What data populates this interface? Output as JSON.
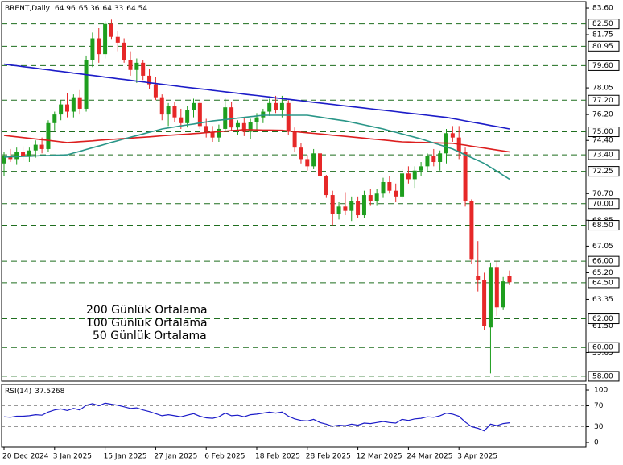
{
  "chart_data": {
    "type": "candlestick",
    "symbol": "BRENT,Daily",
    "categories": [
      "20 Dec 2024",
      null,
      null,
      null,
      null,
      null,
      null,
      null,
      "3 Jan 2025",
      null,
      null,
      null,
      null,
      null,
      null,
      null,
      "15 Jan 2025",
      null,
      null,
      null,
      null,
      null,
      null,
      null,
      "27 Jan 2025",
      null,
      null,
      null,
      null,
      null,
      null,
      null,
      "6 Feb 2025",
      null,
      null,
      null,
      null,
      null,
      null,
      null,
      "18 Feb 2025",
      null,
      null,
      null,
      null,
      null,
      null,
      null,
      "28 Feb 2025",
      null,
      null,
      null,
      null,
      null,
      null,
      null,
      "12 Mar 2025",
      null,
      null,
      null,
      null,
      null,
      null,
      null,
      "24 Mar 2025",
      null,
      null,
      null,
      null,
      null,
      null,
      null,
      "3 Apr 2025",
      null,
      null,
      null,
      null,
      null,
      null,
      null,
      null
    ],
    "open": [
      72.8,
      73.3,
      73.1,
      73.6,
      73.3,
      73.7,
      74.1,
      73.8,
      75.6,
      76.2,
      76.9,
      76.4,
      77.4,
      76.6,
      80.0,
      81.5,
      80.4,
      82.5,
      81.6,
      81.2,
      80.0,
      79.3,
      79.8,
      78.9,
      78.3,
      77.4,
      76.2,
      76.8,
      76.0,
      75.6,
      76.5,
      77.0,
      75.4,
      75.0,
      74.6,
      75.2,
      76.7,
      75.3,
      75.6,
      75.0,
      75.7,
      76.0,
      76.4,
      77.0,
      76.5,
      77.0,
      75.0,
      73.9,
      73.1,
      72.6,
      73.5,
      71.9,
      70.6,
      69.3,
      69.8,
      69.5,
      70.2,
      69.2,
      70.6,
      70.2,
      70.7,
      71.5,
      70.9,
      70.5,
      72.1,
      71.7,
      72.3,
      72.6,
      73.3,
      72.9,
      73.5,
      74.9,
      74.6,
      73.6,
      70.2,
      65.0,
      64.7,
      61.4,
      65.6,
      62.8,
      64.96
    ],
    "high": [
      73.6,
      73.8,
      73.9,
      74.0,
      73.9,
      74.4,
      74.6,
      75.8,
      76.4,
      77.2,
      77.7,
      77.6,
      77.9,
      80.3,
      81.9,
      82.2,
      82.7,
      82.8,
      82.0,
      81.5,
      80.6,
      80.1,
      80.0,
      79.4,
      78.8,
      77.6,
      77.0,
      77.1,
      76.6,
      76.8,
      77.3,
      77.2,
      75.9,
      75.4,
      75.5,
      77.3,
      77.1,
      75.8,
      76.0,
      75.9,
      76.3,
      76.6,
      77.3,
      77.5,
      77.5,
      77.2,
      75.3,
      74.2,
      73.4,
      73.8,
      73.9,
      72.0,
      70.9,
      70.1,
      70.8,
      70.5,
      70.5,
      70.9,
      71.0,
      71.0,
      71.8,
      71.9,
      71.4,
      72.4,
      72.6,
      72.6,
      72.9,
      73.5,
      73.8,
      73.7,
      75.2,
      75.4,
      75.4,
      73.9,
      70.3,
      67.4,
      65.2,
      65.9,
      66.0,
      64.9,
      65.36
    ],
    "low": [
      71.9,
      72.9,
      72.7,
      73.0,
      72.9,
      73.2,
      73.5,
      73.6,
      75.1,
      75.8,
      76.0,
      76.0,
      76.2,
      76.4,
      79.5,
      79.8,
      80.1,
      81.4,
      80.6,
      79.8,
      78.9,
      78.4,
      78.6,
      78.0,
      77.2,
      75.8,
      75.4,
      75.7,
      75.2,
      75.3,
      76.0,
      75.2,
      74.6,
      74.3,
      74.3,
      75.0,
      75.1,
      74.8,
      74.7,
      74.5,
      75.0,
      75.6,
      76.1,
      76.3,
      76.0,
      74.8,
      73.6,
      72.8,
      72.3,
      72.4,
      71.5,
      70.4,
      68.5,
      68.9,
      69.2,
      68.8,
      69.0,
      69.0,
      69.9,
      69.9,
      70.4,
      70.7,
      70.1,
      70.3,
      71.4,
      71.1,
      71.9,
      72.2,
      72.6,
      72.3,
      72.8,
      74.3,
      73.1,
      69.8,
      65.8,
      63.9,
      61.2,
      58.2,
      62.2,
      62.6,
      64.33
    ],
    "close": [
      73.3,
      73.1,
      73.6,
      73.3,
      73.7,
      74.1,
      73.8,
      75.6,
      76.2,
      76.9,
      76.4,
      77.4,
      76.6,
      80.0,
      81.5,
      80.4,
      82.5,
      81.6,
      81.2,
      80.0,
      79.3,
      79.8,
      78.9,
      78.3,
      77.4,
      76.2,
      76.8,
      76.0,
      75.6,
      76.5,
      77.0,
      75.4,
      75.0,
      74.6,
      75.2,
      76.7,
      75.3,
      75.6,
      75.0,
      75.7,
      76.0,
      76.4,
      77.0,
      76.5,
      77.0,
      75.0,
      73.9,
      73.1,
      72.6,
      73.5,
      71.9,
      70.6,
      69.3,
      69.8,
      69.5,
      70.2,
      69.2,
      70.6,
      70.2,
      70.7,
      71.5,
      70.9,
      70.5,
      72.1,
      71.7,
      72.3,
      72.6,
      73.3,
      72.9,
      73.5,
      74.9,
      74.6,
      73.6,
      70.2,
      66.1,
      64.7,
      61.5,
      65.6,
      62.8,
      64.6,
      64.54
    ],
    "up_color": "#1e9e1e",
    "down_color": "#e62828",
    "series": [
      {
        "name": "200 Günlük Ortalama",
        "color": "#1c1cc8",
        "values": [
          79.7,
          79.64,
          79.59,
          79.53,
          79.48,
          79.42,
          79.36,
          79.31,
          79.25,
          79.2,
          79.14,
          79.08,
          79.03,
          78.97,
          78.92,
          78.86,
          78.8,
          78.75,
          78.69,
          78.64,
          78.58,
          78.52,
          78.47,
          78.41,
          78.36,
          78.3,
          78.25,
          78.2,
          78.14,
          78.09,
          78.04,
          77.99,
          77.94,
          77.88,
          77.83,
          77.78,
          77.73,
          77.68,
          77.62,
          77.57,
          77.52,
          77.47,
          77.42,
          77.36,
          77.31,
          77.26,
          77.21,
          77.16,
          77.1,
          77.05,
          77.0,
          76.95,
          76.9,
          76.85,
          76.8,
          76.75,
          76.7,
          76.65,
          76.6,
          76.55,
          76.5,
          76.45,
          76.4,
          76.35,
          76.3,
          76.25,
          76.2,
          76.15,
          76.1,
          76.05,
          76.0,
          75.92,
          75.84,
          75.76,
          75.68,
          75.6,
          75.52,
          75.44,
          75.36,
          75.28,
          75.2
        ]
      },
      {
        "name": "100 Günlük Ortalama",
        "color": "#dc1e1e",
        "values": [
          74.75,
          74.7,
          74.65,
          74.6,
          74.55,
          74.5,
          74.45,
          74.4,
          74.35,
          74.3,
          74.25,
          74.28,
          74.31,
          74.34,
          74.37,
          74.41,
          74.44,
          74.47,
          74.5,
          74.53,
          74.56,
          74.59,
          74.62,
          74.65,
          74.68,
          74.72,
          74.75,
          74.78,
          74.81,
          74.84,
          74.87,
          74.9,
          74.94,
          74.97,
          75.01,
          75.04,
          75.08,
          75.11,
          75.15,
          75.14,
          75.13,
          75.12,
          75.12,
          75.11,
          75.1,
          75.06,
          75.02,
          74.97,
          74.93,
          74.89,
          74.85,
          74.81,
          74.76,
          74.72,
          74.68,
          74.64,
          74.6,
          74.56,
          74.51,
          74.47,
          74.43,
          74.39,
          74.34,
          74.3,
          74.29,
          74.27,
          74.26,
          74.25,
          74.24,
          74.22,
          74.21,
          74.2,
          74.13,
          74.07,
          74.0,
          73.93,
          73.87,
          73.8,
          73.73,
          73.67,
          73.6
        ]
      },
      {
        "name": "50 Günlük Ortalama",
        "color": "#2a9688",
        "values": [
          73.24,
          73.26,
          73.27,
          73.29,
          73.3,
          73.32,
          73.34,
          73.35,
          73.37,
          73.38,
          73.4,
          73.52,
          73.64,
          73.77,
          73.89,
          74.01,
          74.13,
          74.26,
          74.38,
          74.5,
          74.62,
          74.73,
          74.85,
          74.97,
          75.08,
          75.2,
          75.27,
          75.34,
          75.41,
          75.48,
          75.54,
          75.61,
          75.68,
          75.75,
          75.8,
          75.85,
          75.9,
          75.95,
          76.0,
          76.05,
          76.1,
          76.15,
          76.15,
          76.15,
          76.15,
          76.15,
          76.15,
          76.15,
          76.15,
          76.08,
          76.02,
          75.95,
          75.88,
          75.82,
          75.75,
          75.66,
          75.57,
          75.48,
          75.38,
          75.29,
          75.2,
          75.08,
          74.97,
          74.85,
          74.73,
          74.62,
          74.5,
          74.36,
          74.22,
          74.08,
          73.94,
          73.8,
          73.6,
          73.4,
          73.2,
          73.0,
          72.8,
          72.53,
          72.25,
          71.98,
          71.7
        ]
      }
    ],
    "ylim": [
      57.66,
      84.05
    ],
    "yticks": [
      {
        "value": 83.6,
        "label": "83.60"
      },
      {
        "value": 81.75,
        "label": "81.75"
      },
      {
        "value": 78.05,
        "label": "78.05"
      },
      {
        "value": 76.2,
        "label": "76.20"
      },
      {
        "value": 74.4,
        "label": "74.40"
      },
      {
        "value": 70.7,
        "label": "70.70"
      },
      {
        "value": 68.85,
        "label": "68.85"
      },
      {
        "value": 67.05,
        "label": "67.05"
      },
      {
        "value": 65.2,
        "label": "65.20"
      },
      {
        "value": 63.35,
        "label": "63.35"
      },
      {
        "value": 61.5,
        "label": "61.50"
      },
      {
        "value": 59.65,
        "label": "59.65"
      }
    ],
    "levels": [
      {
        "value": 82.5,
        "label": "82.50"
      },
      {
        "value": 80.95,
        "label": "80.95"
      },
      {
        "value": 79.6,
        "label": "79.60"
      },
      {
        "value": 77.2,
        "label": "77.20"
      },
      {
        "value": 75,
        "label": "75.00"
      },
      {
        "value": 73.4,
        "label": "73.40"
      },
      {
        "value": 72.25,
        "label": "72.25"
      },
      {
        "value": 70,
        "label": "70.00"
      },
      {
        "value": 68.5,
        "label": "68.50"
      },
      {
        "value": 66,
        "label": "66.00"
      },
      {
        "value": 64.5,
        "label": "64.50"
      },
      {
        "value": 62,
        "label": "62.00"
      },
      {
        "value": 60,
        "label": "60.00"
      },
      {
        "value": 58,
        "label": "58.00"
      }
    ],
    "level_color": "#1f6e1f",
    "rsi": {
      "name": "RSI(14)",
      "color": "#1c1cc8",
      "values": [
        49,
        48,
        50,
        50,
        51,
        53,
        52,
        58,
        62,
        64,
        61,
        65,
        62,
        71,
        74,
        70,
        75,
        73,
        71,
        68,
        65,
        66,
        62,
        59,
        55,
        51,
        53,
        51,
        49,
        52,
        55,
        50,
        47,
        46,
        49,
        56,
        51,
        52,
        49,
        53,
        54,
        56,
        58,
        56,
        58,
        50,
        45,
        42,
        41,
        44,
        38,
        35,
        31,
        33,
        32,
        35,
        33,
        37,
        36,
        38,
        40,
        38,
        37,
        44,
        42,
        45,
        46,
        49,
        48,
        51,
        56,
        54,
        50,
        39,
        30,
        27,
        22,
        35,
        32,
        36,
        37.5268
      ],
      "ylim": [
        -9.2,
        110.8
      ],
      "yticks": [
        100,
        70,
        30,
        0
      ],
      "levels": [
        70,
        30
      ]
    }
  }
}
